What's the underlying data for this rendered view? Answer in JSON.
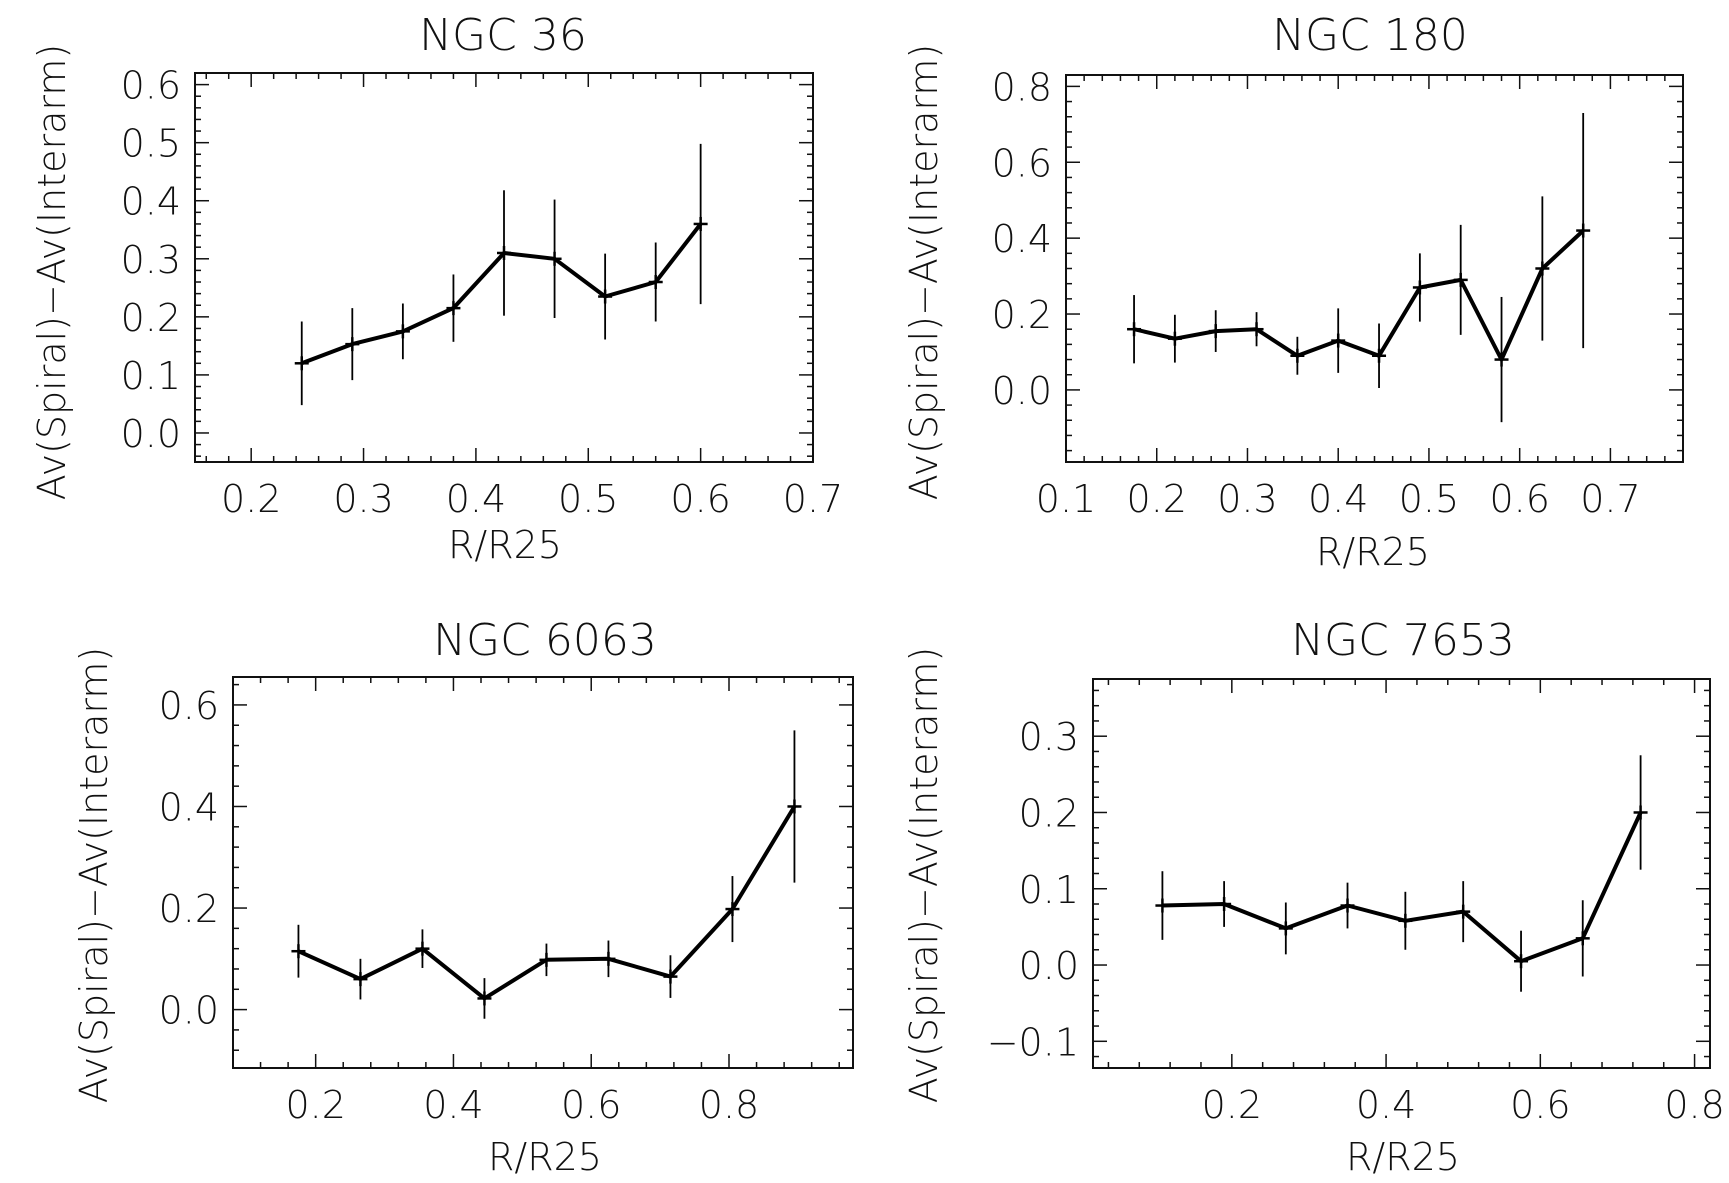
{
  "chart_data": [
    {
      "type": "line",
      "title": "NGC 36",
      "xlabel": "R/R25",
      "ylabel": "Av(Spiral)−Av(Interarm)",
      "xlim": [
        0.15,
        0.7
      ],
      "ylim": [
        -0.05,
        0.62
      ],
      "x_ticks": [
        0.2,
        0.3,
        0.4,
        0.5,
        0.6,
        0.7
      ],
      "x_tick_labels": [
        "0.2",
        "0.3",
        "0.4",
        "0.5",
        "0.6",
        "0.7"
      ],
      "y_ticks": [
        0.0,
        0.1,
        0.2,
        0.3,
        0.4,
        0.5,
        0.6
      ],
      "y_tick_labels": [
        "0.0",
        "0.1",
        "0.2",
        "0.3",
        "0.4",
        "0.5",
        "0.6"
      ],
      "x": [
        0.245,
        0.29,
        0.335,
        0.38,
        0.425,
        0.47,
        0.515,
        0.56,
        0.6
      ],
      "y": [
        0.12,
        0.153,
        0.175,
        0.215,
        0.31,
        0.3,
        0.235,
        0.26,
        0.36
      ],
      "y_err": [
        0.072,
        0.062,
        0.048,
        0.058,
        0.108,
        0.102,
        0.074,
        0.068,
        0.138
      ]
    },
    {
      "type": "line",
      "title": "NGC 180",
      "xlabel": "R/R25",
      "ylabel": "Av(Spiral)−Av(Interarm)",
      "xlim": [
        0.1,
        0.78
      ],
      "ylim": [
        -0.19,
        0.83
      ],
      "x_ticks": [
        0.1,
        0.2,
        0.3,
        0.4,
        0.5,
        0.6,
        0.7
      ],
      "x_tick_labels": [
        "0.1",
        "0.2",
        "0.3",
        "0.4",
        "0.5",
        "0.6",
        "0.7"
      ],
      "y_ticks": [
        0.0,
        0.2,
        0.4,
        0.6,
        0.8
      ],
      "y_tick_labels": [
        "0.0",
        "0.2",
        "0.4",
        "0.6",
        "0.8"
      ],
      "x": [
        0.175,
        0.22,
        0.265,
        0.31,
        0.355,
        0.4,
        0.445,
        0.49,
        0.535,
        0.58,
        0.625,
        0.67
      ],
      "y": [
        0.16,
        0.135,
        0.155,
        0.16,
        0.09,
        0.13,
        0.09,
        0.27,
        0.29,
        0.08,
        0.32,
        0.42
      ],
      "y_err": [
        0.09,
        0.063,
        0.055,
        0.045,
        0.05,
        0.085,
        0.085,
        0.09,
        0.145,
        0.165,
        0.19,
        0.31
      ]
    },
    {
      "type": "line",
      "title": "NGC 6063",
      "xlabel": "R/R25",
      "ylabel": "Av(Spiral)−Av(Interarm)",
      "xlim": [
        0.08,
        0.98
      ],
      "ylim": [
        -0.115,
        0.655
      ],
      "x_ticks": [
        0.2,
        0.4,
        0.6,
        0.8
      ],
      "x_tick_labels": [
        "0.2",
        "0.4",
        "0.6",
        "0.8"
      ],
      "y_ticks": [
        0.0,
        0.2,
        0.4,
        0.6
      ],
      "y_tick_labels": [
        "0.0",
        "0.2",
        "0.4",
        "0.6"
      ],
      "x": [
        0.175,
        0.265,
        0.355,
        0.445,
        0.535,
        0.625,
        0.715,
        0.805,
        0.895
      ],
      "y": [
        0.115,
        0.06,
        0.12,
        0.022,
        0.098,
        0.1,
        0.065,
        0.198,
        0.4
      ],
      "y_err": [
        0.052,
        0.04,
        0.038,
        0.04,
        0.032,
        0.036,
        0.042,
        0.065,
        0.15
      ]
    },
    {
      "type": "line",
      "title": "NGC 7653",
      "xlabel": "R/R25",
      "ylabel": "Av(Spiral)−Av(Interarm)",
      "xlim": [
        0.02,
        0.82
      ],
      "ylim": [
        -0.135,
        0.375
      ],
      "x_ticks": [
        0.2,
        0.4,
        0.6,
        0.8
      ],
      "x_tick_labels": [
        "0.2",
        "0.4",
        "0.6",
        "0.8"
      ],
      "y_ticks": [
        -0.1,
        0.0,
        0.1,
        0.2,
        0.3
      ],
      "y_tick_labels": [
        "−0.1",
        "0.0",
        "0.1",
        "0.2",
        "0.3"
      ],
      "x": [
        0.11,
        0.19,
        0.27,
        0.35,
        0.425,
        0.5,
        0.575,
        0.655,
        0.73
      ],
      "y": [
        0.078,
        0.08,
        0.048,
        0.078,
        0.058,
        0.07,
        0.005,
        0.035,
        0.2
      ],
      "y_err": [
        0.045,
        0.03,
        0.034,
        0.03,
        0.038,
        0.04,
        0.04,
        0.05,
        0.075
      ]
    }
  ]
}
